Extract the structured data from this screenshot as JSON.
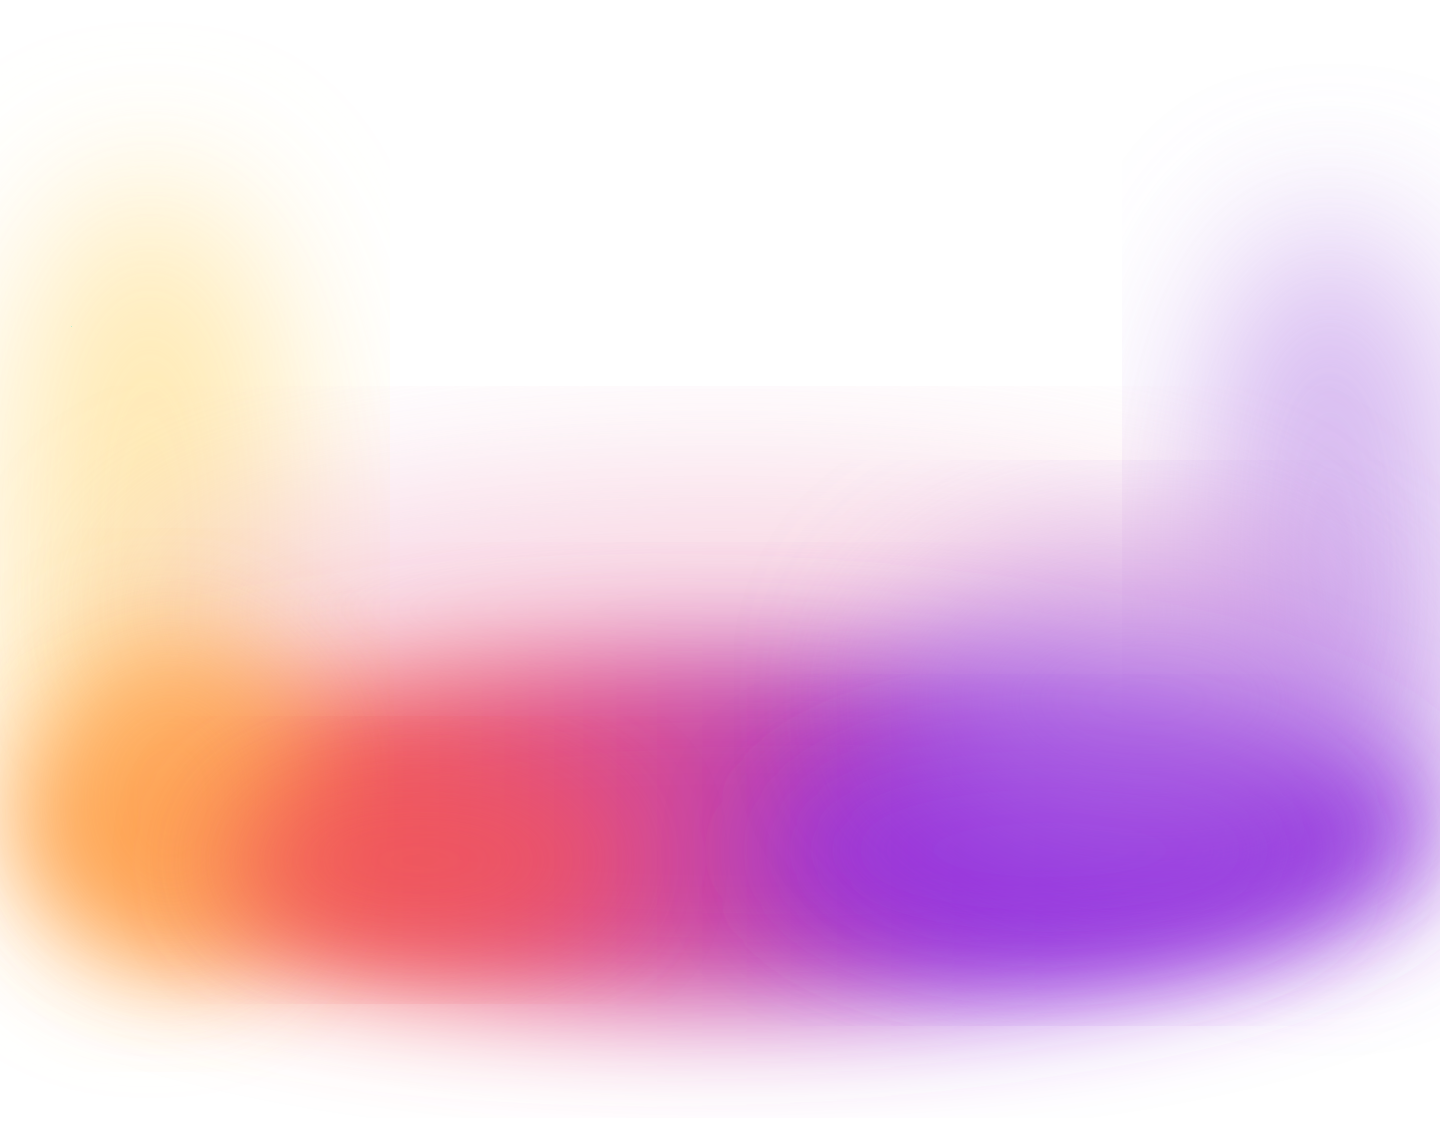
{
  "background": {
    "base_color": "#ffffff",
    "gradient_stops": [
      {
        "name": "yellow",
        "color": "#ffe6a6"
      },
      {
        "name": "orange",
        "color": "#ffab54"
      },
      {
        "name": "coral",
        "color": "#f46158"
      },
      {
        "name": "pink",
        "color": "#e04f86"
      },
      {
        "name": "magenta",
        "color": "#c245ad"
      },
      {
        "name": "violet",
        "color": "#9a3ad9"
      },
      {
        "name": "purple",
        "color": "#9035dd"
      },
      {
        "name": "lavender",
        "color": "#c9a3ec"
      }
    ]
  }
}
